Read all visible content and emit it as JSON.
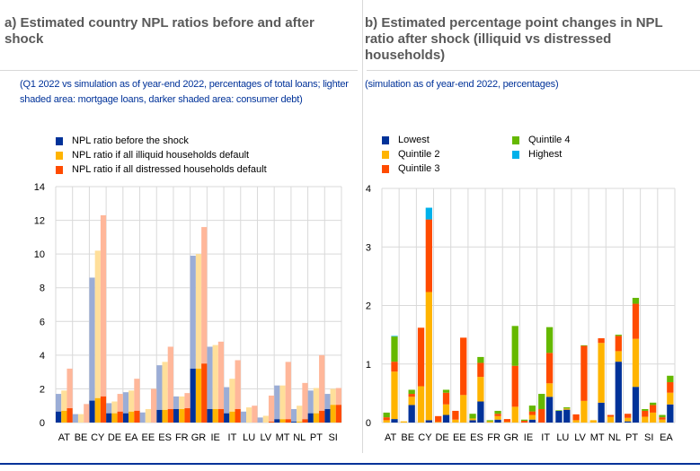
{
  "colors": {
    "blue": "#003299",
    "yellow": "#FFB400",
    "red": "#FF4B00",
    "blue_light": "#9BADD6",
    "yellow_light": "#FFDF9A",
    "red_light": "#FFB79A",
    "green": "#65B800",
    "cyan": "#00B1EA",
    "grid": "#d9d9d9"
  },
  "chart_data": [
    {
      "type": "bar",
      "title": "a) Estimated country NPL ratios before and after shock",
      "subtitle": "(Q1 2022 vs simulation as of year-end 2022, percentages of total loans; lighter shaded area: mortgage loans, darker shaded area: consumer debt)",
      "ylim": [
        0,
        14
      ],
      "yticks": [
        "0",
        "2",
        "4",
        "6",
        "8",
        "10",
        "12",
        "14"
      ],
      "categories": [
        "AT",
        "BE",
        "CY",
        "DE",
        "EA",
        "EE",
        "ES",
        "FR",
        "GR",
        "IE",
        "IT",
        "LU",
        "LV",
        "MT",
        "NL",
        "PT",
        "SI"
      ],
      "series": [
        {
          "name": "NPL ratio before the shock",
          "color_key": "blue",
          "total": [
            1.7,
            0.5,
            8.6,
            1.15,
            1.8,
            0.6,
            3.4,
            1.55,
            9.9,
            4.5,
            2.1,
            0.65,
            0.3,
            2.2,
            0.8,
            1.9,
            1.7
          ],
          "consumer": [
            0.65,
            0,
            1.3,
            0.55,
            0.55,
            0,
            0.75,
            0.8,
            3.2,
            0.8,
            0.55,
            0,
            0,
            0.2,
            0.05,
            0.55,
            0.8
          ]
        },
        {
          "name": "NPL ratio if all illiquid households default",
          "color_key": "yellow",
          "total": [
            1.9,
            0.5,
            10.2,
            1.25,
            1.9,
            0.8,
            3.6,
            1.55,
            10.0,
            4.6,
            2.6,
            0.9,
            0.4,
            2.2,
            1.0,
            2.05,
            2.0
          ],
          "consumer": [
            0.7,
            0,
            1.45,
            0.55,
            0.65,
            0,
            0.75,
            0.8,
            3.2,
            0.8,
            0.65,
            0,
            0,
            0.2,
            0.05,
            0.55,
            1.05
          ]
        },
        {
          "name": "NPL ratio if all distressed households default",
          "color_key": "red",
          "total": [
            3.2,
            1.1,
            12.3,
            1.7,
            2.6,
            2.0,
            4.5,
            1.75,
            11.6,
            4.8,
            3.7,
            1.0,
            1.6,
            3.6,
            2.35,
            4.0,
            2.05
          ],
          "consumer": [
            0.85,
            0,
            1.55,
            0.65,
            0.7,
            0,
            0.8,
            0.85,
            3.5,
            0.8,
            0.8,
            0,
            0.05,
            0.2,
            0.2,
            0.7,
            1.05
          ]
        }
      ]
    },
    {
      "type": "bar",
      "stacked": true,
      "title": "b) Estimated percentage point changes in NPL ratio after shock (illiquid vs distressed households)",
      "subtitle": "(simulation as of year-end 2022, percentages)",
      "ylim": [
        0,
        4
      ],
      "yticks": [
        "0",
        "1",
        "2",
        "3",
        "4"
      ],
      "categories": [
        "AT",
        "BE",
        "CY",
        "DE",
        "EE",
        "ES",
        "FR",
        "GR",
        "IE",
        "IT",
        "LU",
        "LV",
        "MT",
        "NL",
        "PT",
        "SI",
        "EA"
      ],
      "legend": [
        "Lowest",
        "Quintile 2",
        "Quintile 3",
        "Quintile 4",
        "Highest"
      ],
      "legend_colors": [
        "blue",
        "yellow",
        "red",
        "green",
        "cyan"
      ],
      "groups_note": "two bars per country: illiquid, distressed",
      "illiquid": [
        [
          0,
          0.04,
          0.05,
          0.08,
          0
        ],
        [
          0,
          0.02,
          0,
          0,
          0
        ],
        [
          0,
          0.62,
          1.0,
          0,
          0
        ],
        [
          0,
          0.01,
          0.1,
          0,
          0
        ],
        [
          0,
          0.05,
          0.15,
          0,
          0
        ],
        [
          0.04,
          0.03,
          0,
          0.08,
          0
        ],
        [
          0,
          0.02,
          0,
          0.02,
          0
        ],
        [
          0,
          0.01,
          0.05,
          0,
          0
        ],
        [
          0,
          0,
          0.03,
          0.02,
          0
        ],
        [
          0,
          0,
          0.23,
          0.26,
          0
        ],
        [
          0.2,
          0,
          0,
          0.01,
          0
        ],
        [
          0,
          0.04,
          0.1,
          0,
          0
        ],
        [
          0,
          0.04,
          0,
          0,
          0
        ],
        [
          0,
          0.1,
          0.03,
          0,
          0
        ],
        [
          0.02,
          0.06,
          0.07,
          0,
          0
        ],
        [
          0,
          0.1,
          0.1,
          0.03,
          0
        ],
        [
          0,
          0.05,
          0.04,
          0.04,
          0
        ]
      ],
      "distressed": [
        [
          0.06,
          0.81,
          0.17,
          0.43,
          0.01
        ],
        [
          0.3,
          0.14,
          0.05,
          0.07,
          0
        ],
        [
          0.04,
          2.19,
          1.24,
          0,
          0.2
        ],
        [
          0.13,
          0.18,
          0.2,
          0.05,
          0
        ],
        [
          0,
          0.47,
          0.98,
          0,
          0
        ],
        [
          0.36,
          0.42,
          0.24,
          0.1,
          0
        ],
        [
          0.05,
          0.06,
          0.04,
          0.05,
          0
        ],
        [
          0,
          0.27,
          0.7,
          0.68,
          0
        ],
        [
          0.05,
          0.08,
          0.06,
          0.1,
          0
        ],
        [
          0.44,
          0.23,
          0.52,
          0.44,
          0
        ],
        [
          0.22,
          0.02,
          0,
          0.02,
          0
        ],
        [
          0,
          0.37,
          0.94,
          0.01,
          0
        ],
        [
          0.34,
          1.02,
          0.08,
          0,
          0
        ],
        [
          1.04,
          0.18,
          0.26,
          0.02,
          0
        ],
        [
          0.61,
          0.82,
          0.6,
          0.1,
          0
        ],
        [
          0,
          0.17,
          0.13,
          0.04,
          0
        ],
        [
          0.31,
          0.2,
          0.18,
          0.11,
          0
        ]
      ]
    }
  ]
}
